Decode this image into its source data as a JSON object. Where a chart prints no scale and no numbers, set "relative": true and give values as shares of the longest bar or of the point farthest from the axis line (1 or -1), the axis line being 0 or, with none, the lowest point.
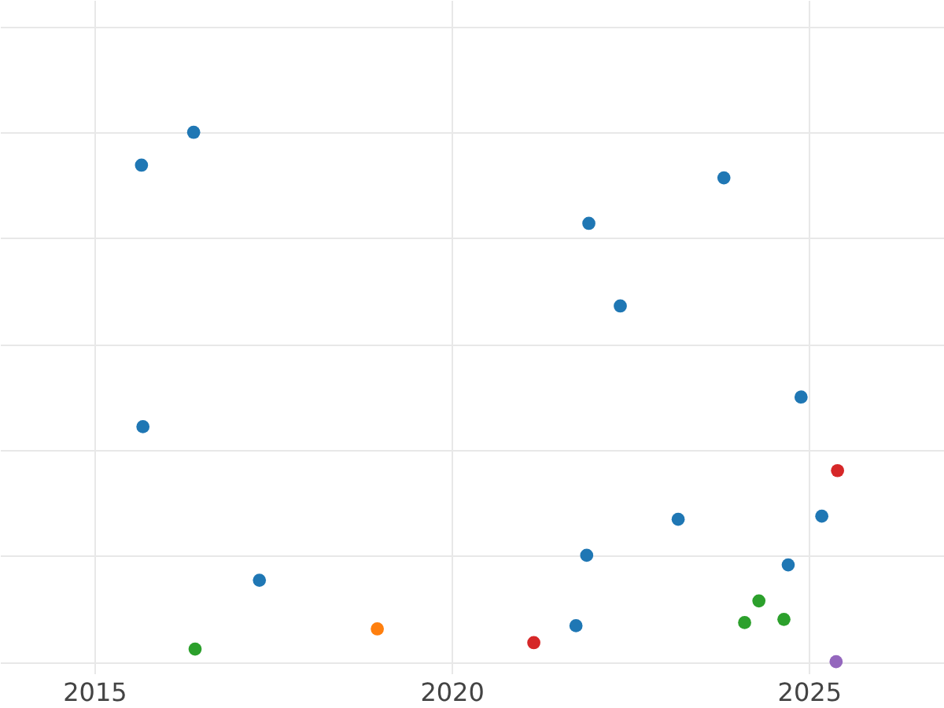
{
  "chart_data": {
    "type": "scatter",
    "relative": true,
    "xlim": [
      2013.68,
      2026.89
    ],
    "xticks": [
      2015,
      2020,
      2025
    ],
    "grid": true,
    "marker": "circle",
    "series": [
      {
        "color": "#1f77b4",
        "x": [
          2016.39,
          2015.66,
          2023.81,
          2021.92,
          2022.36,
          2024.89,
          2015.68,
          2025.18,
          2023.17,
          2021.89,
          2017.31,
          2024.71,
          2021.74
        ],
        "values": [
          1,
          0.938,
          0.914,
          0.828,
          0.672,
          0.5,
          0.444,
          0.275,
          0.269,
          0.201,
          0.154,
          0.183,
          0.068
        ]
      },
      {
        "color": "#d62728",
        "x": [
          2025.4,
          2021.15
        ],
        "values": [
          0.361,
          0.036
        ]
      },
      {
        "color": "#2ca02c",
        "x": [
          2016.41,
          2024.3,
          2024.1,
          2024.65
        ],
        "values": [
          0.024,
          0.115,
          0.074,
          0.08
        ]
      },
      {
        "color": "#ff7f0e",
        "x": [
          2018.96
        ],
        "values": [
          0.062
        ]
      },
      {
        "color": "#9467bd",
        "x": [
          2025.38
        ],
        "values": [
          0
        ]
      }
    ]
  }
}
